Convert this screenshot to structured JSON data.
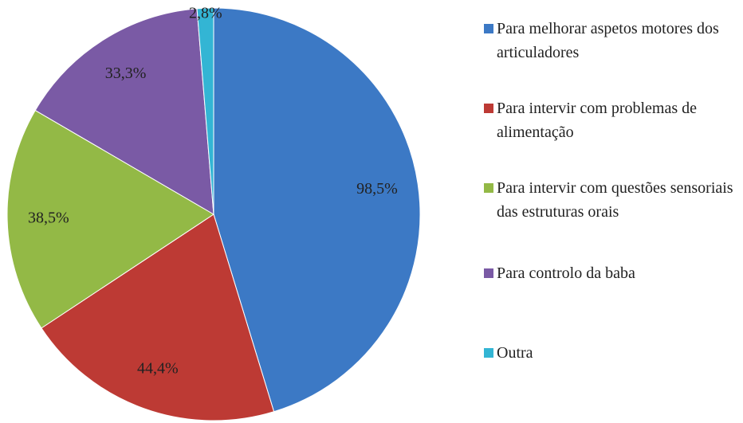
{
  "chart_data": {
    "type": "pie",
    "categories": [
      "Para melhorar aspetos motores dos articuladores",
      "Para intervir com problemas de alimentação",
      "Para intervir com questões sensoriais das estruturas orais",
      "Para controlo da baba",
      "Outra"
    ],
    "values": [
      98.5,
      44.4,
      38.5,
      33.3,
      2.8
    ],
    "value_labels": [
      "98,5%",
      "44,4%",
      "38,5%",
      "33,3%",
      "2,8%"
    ],
    "colors": [
      "#3c79c5",
      "#bd3a34",
      "#93b946",
      "#7a5aa5",
      "#33b5d4"
    ],
    "legend": "right"
  }
}
